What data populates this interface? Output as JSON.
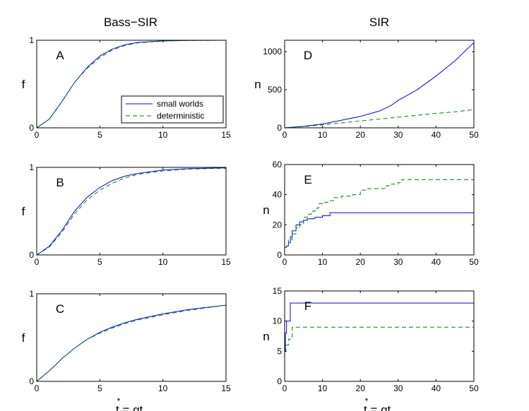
{
  "figure": {
    "left_title": "Bass−SIR",
    "right_title": "SIR",
    "xlabel": "t = qt",
    "xlabel_star": "*"
  },
  "colors": {
    "small_worlds": "#0000ff",
    "deterministic": "#008000"
  },
  "legend": {
    "entries": [
      "small worlds",
      "deterministic"
    ]
  },
  "chart_data": [
    {
      "id": "A",
      "type": "line",
      "panel_label": "A",
      "ylabel": "f",
      "xlim": [
        0,
        15
      ],
      "ylim": [
        0,
        1
      ],
      "xticks": [
        0,
        5,
        10,
        15
      ],
      "yticks": [
        0,
        1
      ],
      "show_legend": true,
      "series": [
        {
          "name": "small worlds",
          "style": "solid",
          "x": [
            0,
            1,
            2,
            3,
            4,
            5,
            6,
            7,
            8,
            10,
            12,
            15
          ],
          "y": [
            0,
            0.1,
            0.3,
            0.52,
            0.69,
            0.82,
            0.9,
            0.95,
            0.975,
            0.993,
            0.998,
            1.0
          ]
        },
        {
          "name": "deterministic",
          "style": "dashed",
          "x": [
            0,
            1,
            2,
            3,
            4,
            5,
            6,
            7,
            8,
            10,
            12,
            15
          ],
          "y": [
            0,
            0.1,
            0.3,
            0.52,
            0.68,
            0.8,
            0.89,
            0.94,
            0.97,
            0.99,
            0.998,
            1.0
          ]
        }
      ]
    },
    {
      "id": "B",
      "type": "line",
      "panel_label": "B",
      "ylabel": "f",
      "xlim": [
        0,
        15
      ],
      "ylim": [
        0,
        1
      ],
      "xticks": [
        0,
        5,
        10,
        15
      ],
      "yticks": [
        0,
        1
      ],
      "show_legend": false,
      "series": [
        {
          "name": "small worlds",
          "style": "solid",
          "x": [
            0,
            1,
            2,
            3,
            4,
            5,
            6,
            7,
            8,
            10,
            12,
            15
          ],
          "y": [
            0,
            0.1,
            0.28,
            0.5,
            0.66,
            0.77,
            0.85,
            0.9,
            0.93,
            0.97,
            0.985,
            0.995
          ]
        },
        {
          "name": "deterministic",
          "style": "dashed",
          "x": [
            0,
            1,
            2,
            3,
            4,
            5,
            6,
            7,
            8,
            10,
            12,
            15
          ],
          "y": [
            0,
            0.09,
            0.26,
            0.47,
            0.63,
            0.74,
            0.82,
            0.88,
            0.92,
            0.96,
            0.98,
            0.99
          ]
        }
      ]
    },
    {
      "id": "C",
      "type": "line",
      "panel_label": "C",
      "ylabel": "f",
      "xlim": [
        0,
        15
      ],
      "ylim": [
        0,
        1
      ],
      "xticks": [
        0,
        5,
        10,
        15
      ],
      "yticks": [
        0,
        1
      ],
      "show_legend": false,
      "series": [
        {
          "name": "small worlds",
          "style": "solid",
          "x": [
            0,
            1,
            2,
            3,
            4,
            5,
            6,
            7,
            8,
            9,
            10,
            12,
            15
          ],
          "y": [
            0,
            0.12,
            0.26,
            0.38,
            0.48,
            0.56,
            0.62,
            0.67,
            0.71,
            0.74,
            0.77,
            0.82,
            0.87
          ]
        },
        {
          "name": "deterministic",
          "style": "dashed",
          "x": [
            0,
            1,
            2,
            3,
            4,
            5,
            6,
            7,
            8,
            9,
            10,
            12,
            15
          ],
          "y": [
            0,
            0.12,
            0.26,
            0.38,
            0.48,
            0.55,
            0.61,
            0.66,
            0.7,
            0.73,
            0.76,
            0.81,
            0.87
          ]
        }
      ]
    },
    {
      "id": "D",
      "type": "line",
      "panel_label": "D",
      "ylabel": "n",
      "xlim": [
        0,
        50
      ],
      "ylim": [
        0,
        1150
      ],
      "xticks": [
        0,
        10,
        20,
        30,
        40,
        50
      ],
      "yticks": [
        0,
        500,
        1000
      ],
      "show_legend": false,
      "series": [
        {
          "name": "small worlds",
          "style": "solid",
          "x": [
            0,
            5,
            10,
            15,
            20,
            25,
            28,
            30,
            35,
            40,
            45,
            50
          ],
          "y": [
            0,
            20,
            50,
            100,
            150,
            220,
            290,
            360,
            500,
            680,
            880,
            1120
          ]
        },
        {
          "name": "deterministic",
          "style": "dashed",
          "x": [
            0,
            5,
            10,
            15,
            20,
            25,
            30,
            35,
            40,
            45,
            50
          ],
          "y": [
            0,
            15,
            40,
            65,
            90,
            115,
            140,
            165,
            190,
            210,
            240
          ]
        }
      ]
    },
    {
      "id": "E",
      "type": "line",
      "panel_label": "E",
      "ylabel": "n",
      "xlim": [
        0,
        50
      ],
      "ylim": [
        0,
        60
      ],
      "xticks": [
        0,
        10,
        20,
        30,
        40,
        50
      ],
      "yticks": [
        0,
        20,
        40,
        60
      ],
      "show_legend": false,
      "series": [
        {
          "name": "small worlds",
          "style": "solid",
          "step": true,
          "x": [
            0,
            0.5,
            1,
            1.5,
            2,
            2.5,
            3,
            4,
            5,
            6,
            8,
            10,
            12,
            50
          ],
          "y": [
            5,
            6,
            8,
            12,
            16,
            16,
            20,
            22,
            23,
            24,
            25,
            26,
            28,
            28
          ]
        },
        {
          "name": "deterministic",
          "style": "dashed",
          "step": true,
          "x": [
            0,
            0.5,
            1,
            2,
            3,
            4,
            5,
            6,
            7,
            8,
            9,
            10,
            12,
            13,
            15,
            18,
            20,
            22,
            25,
            27,
            28,
            30,
            31,
            50
          ],
          "y": [
            5,
            6,
            10,
            14,
            18,
            20,
            25,
            27,
            29,
            31,
            34,
            35,
            36,
            38,
            39,
            40,
            43,
            44,
            44,
            46,
            47,
            48,
            50,
            50
          ]
        }
      ]
    },
    {
      "id": "F",
      "type": "line",
      "panel_label": "F",
      "ylabel": "n",
      "xlim": [
        0,
        50
      ],
      "ylim": [
        0,
        15
      ],
      "xticks": [
        0,
        10,
        20,
        30,
        40,
        50
      ],
      "yticks": [
        0,
        5,
        10,
        15
      ],
      "show_legend": false,
      "series": [
        {
          "name": "small worlds",
          "style": "solid",
          "step": true,
          "x": [
            0,
            0.2,
            0.5,
            1,
            1.5,
            50
          ],
          "y": [
            5,
            8,
            10,
            10,
            13,
            13
          ]
        },
        {
          "name": "deterministic",
          "style": "dashed",
          "step": true,
          "x": [
            0,
            0.3,
            1,
            2,
            50
          ],
          "y": [
            5,
            6,
            7,
            9,
            9
          ]
        }
      ]
    }
  ]
}
